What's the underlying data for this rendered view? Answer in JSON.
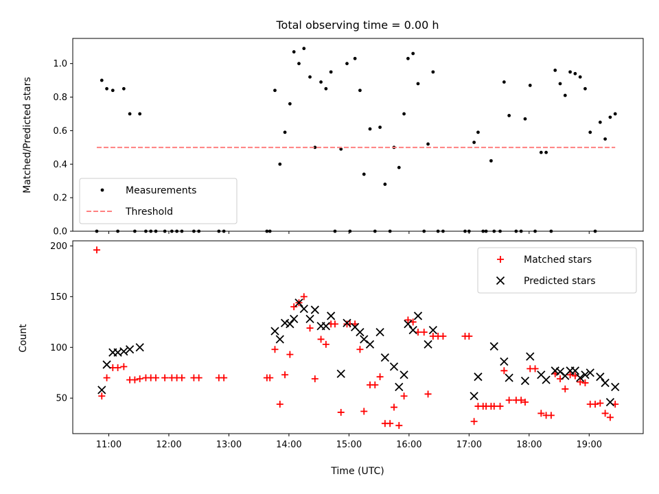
{
  "chart_data": [
    {
      "type": "scatter",
      "title": "Total observing time = 0.00 h",
      "xlabel": "",
      "ylabel": "Matched/Predicted stars",
      "xlim": [
        "10:24",
        "19:54"
      ],
      "ylim": [
        0,
        1.15
      ],
      "yticks": [
        0.0,
        0.2,
        0.4,
        0.6,
        0.8,
        1.0
      ],
      "ytick_labels": [
        "0.0",
        "0.2",
        "0.4",
        "0.6",
        "0.8",
        "1.0"
      ],
      "grid": false,
      "legend_position": "lower-left",
      "series": [
        {
          "name": "Measurements",
          "color": "#000000",
          "marker": "dot",
          "points": [
            [
              "10:48",
              0.0
            ],
            [
              "10:53",
              0.9
            ],
            [
              "10:58",
              0.85
            ],
            [
              "11:04",
              0.84
            ],
            [
              "11:09",
              0.0
            ],
            [
              "11:15",
              0.85
            ],
            [
              "11:21",
              0.7
            ],
            [
              "11:26",
              0.0
            ],
            [
              "11:31",
              0.7
            ],
            [
              "11:37",
              0.0
            ],
            [
              "11:42",
              0.0
            ],
            [
              "11:47",
              0.0
            ],
            [
              "11:56",
              0.0
            ],
            [
              "12:03",
              0.0
            ],
            [
              "12:08",
              0.0
            ],
            [
              "12:13",
              0.0
            ],
            [
              "12:25",
              0.0
            ],
            [
              "12:30",
              0.0
            ],
            [
              "12:50",
              0.0
            ],
            [
              "12:55",
              0.0
            ],
            [
              "13:38",
              0.0
            ],
            [
              "13:41",
              0.0
            ],
            [
              "13:46",
              0.84
            ],
            [
              "13:51",
              0.4
            ],
            [
              "13:56",
              0.59
            ],
            [
              "14:01",
              0.76
            ],
            [
              "14:05",
              1.07
            ],
            [
              "14:10",
              1.0
            ],
            [
              "14:15",
              1.09
            ],
            [
              "14:21",
              0.92
            ],
            [
              "14:26",
              0.5
            ],
            [
              "14:32",
              0.89
            ],
            [
              "14:37",
              0.85
            ],
            [
              "14:42",
              0.95
            ],
            [
              "14:46",
              0.0
            ],
            [
              "14:52",
              0.49
            ],
            [
              "14:58",
              1.0
            ],
            [
              "15:01",
              0.0
            ],
            [
              "15:06",
              1.03
            ],
            [
              "15:11",
              0.84
            ],
            [
              "15:15",
              0.34
            ],
            [
              "15:21",
              0.61
            ],
            [
              "15:26",
              0.0
            ],
            [
              "15:31",
              0.62
            ],
            [
              "15:36",
              0.28
            ],
            [
              "15:41",
              0.0
            ],
            [
              "15:45",
              0.5
            ],
            [
              "15:50",
              0.38
            ],
            [
              "15:55",
              0.7
            ],
            [
              "15:59",
              1.03
            ],
            [
              "16:04",
              1.06
            ],
            [
              "16:09",
              0.88
            ],
            [
              "16:15",
              0.0
            ],
            [
              "16:19",
              0.52
            ],
            [
              "16:24",
              0.95
            ],
            [
              "16:29",
              0.0
            ],
            [
              "16:34",
              0.0
            ],
            [
              "16:56",
              0.0
            ],
            [
              "17:00",
              0.0
            ],
            [
              "17:05",
              0.53
            ],
            [
              "17:09",
              0.59
            ],
            [
              "17:14",
              0.0
            ],
            [
              "17:17",
              0.0
            ],
            [
              "17:22",
              0.42
            ],
            [
              "17:25",
              0.0
            ],
            [
              "17:31",
              0.0
            ],
            [
              "17:35",
              0.89
            ],
            [
              "17:40",
              0.69
            ],
            [
              "17:47",
              0.0
            ],
            [
              "17:52",
              0.0
            ],
            [
              "17:56",
              0.67
            ],
            [
              "18:01",
              0.87
            ],
            [
              "18:06",
              0.0
            ],
            [
              "18:12",
              0.47
            ],
            [
              "18:17",
              0.47
            ],
            [
              "18:22",
              0.0
            ],
            [
              "18:26",
              0.96
            ],
            [
              "18:31",
              0.88
            ],
            [
              "18:36",
              0.81
            ],
            [
              "18:41",
              0.95
            ],
            [
              "18:46",
              0.94
            ],
            [
              "18:51",
              0.92
            ],
            [
              "18:56",
              0.85
            ],
            [
              "19:01",
              0.59
            ],
            [
              "19:06",
              0.0
            ],
            [
              "19:11",
              0.65
            ],
            [
              "19:16",
              0.55
            ],
            [
              "19:21",
              0.68
            ],
            [
              "19:26",
              0.7
            ]
          ]
        },
        {
          "name": "Threshold",
          "color": "#ff8080",
          "style": "dashed",
          "points": [
            [
              "10:48",
              0.5
            ],
            [
              "19:26",
              0.5
            ]
          ]
        }
      ]
    },
    {
      "type": "scatter",
      "title": "",
      "xlabel": "Time (UTC)",
      "ylabel": "Count",
      "xlim": [
        "10:24",
        "19:54"
      ],
      "ylim": [
        15,
        205
      ],
      "yticks": [
        50,
        100,
        150,
        200
      ],
      "ytick_labels": [
        "50",
        "100",
        "150",
        "200"
      ],
      "xticks": [
        "11:00",
        "12:00",
        "13:00",
        "14:00",
        "15:00",
        "16:00",
        "17:00",
        "18:00",
        "19:00"
      ],
      "xtick_labels": [
        "11:00",
        "12:00",
        "13:00",
        "14:00",
        "15:00",
        "16:00",
        "17:00",
        "18:00",
        "19:00"
      ],
      "grid": false,
      "legend_position": "top-right",
      "series": [
        {
          "name": "Matched stars",
          "color": "#ff0000",
          "marker": "plus",
          "points": [
            [
              "10:48",
              196
            ],
            [
              "10:53",
              52
            ],
            [
              "10:58",
              70
            ],
            [
              "11:04",
              80
            ],
            [
              "11:09",
              80
            ],
            [
              "11:15",
              81
            ],
            [
              "11:21",
              68
            ],
            [
              "11:26",
              68
            ],
            [
              "11:31",
              69
            ],
            [
              "11:37",
              70
            ],
            [
              "11:42",
              70
            ],
            [
              "11:47",
              70
            ],
            [
              "11:56",
              70
            ],
            [
              "12:03",
              70
            ],
            [
              "12:08",
              70
            ],
            [
              "12:13",
              70
            ],
            [
              "12:25",
              70
            ],
            [
              "12:30",
              70
            ],
            [
              "12:50",
              70
            ],
            [
              "12:55",
              70
            ],
            [
              "13:38",
              70
            ],
            [
              "13:41",
              70
            ],
            [
              "13:46",
              98
            ],
            [
              "13:51",
              44
            ],
            [
              "13:56",
              73
            ],
            [
              "14:01",
              93
            ],
            [
              "14:05",
              140
            ],
            [
              "14:10",
              144
            ],
            [
              "14:15",
              150
            ],
            [
              "14:21",
              119
            ],
            [
              "14:26",
              69
            ],
            [
              "14:32",
              108
            ],
            [
              "14:37",
              103
            ],
            [
              "14:42",
              123
            ],
            [
              "14:46",
              123
            ],
            [
              "14:52",
              36
            ],
            [
              "14:58",
              123
            ],
            [
              "15:01",
              123
            ],
            [
              "15:06",
              123
            ],
            [
              "15:11",
              98
            ],
            [
              "15:15",
              37
            ],
            [
              "15:21",
              63
            ],
            [
              "15:26",
              63
            ],
            [
              "15:31",
              71
            ],
            [
              "15:36",
              25
            ],
            [
              "15:41",
              25
            ],
            [
              "15:45",
              41
            ],
            [
              "15:50",
              23
            ],
            [
              "15:55",
              52
            ],
            [
              "15:59",
              127
            ],
            [
              "16:04",
              125
            ],
            [
              "16:09",
              115
            ],
            [
              "16:15",
              115
            ],
            [
              "16:19",
              54
            ],
            [
              "16:24",
              111
            ],
            [
              "16:29",
              111
            ],
            [
              "16:34",
              111
            ],
            [
              "16:56",
              111
            ],
            [
              "17:00",
              111
            ],
            [
              "17:05",
              27
            ],
            [
              "17:09",
              42
            ],
            [
              "17:14",
              42
            ],
            [
              "17:17",
              42
            ],
            [
              "17:22",
              42
            ],
            [
              "17:25",
              42
            ],
            [
              "17:31",
              42
            ],
            [
              "17:35",
              77
            ],
            [
              "17:40",
              48
            ],
            [
              "17:47",
              48
            ],
            [
              "17:52",
              48
            ],
            [
              "17:56",
              46
            ],
            [
              "18:01",
              79
            ],
            [
              "18:06",
              79
            ],
            [
              "18:12",
              35
            ],
            [
              "18:17",
              33
            ],
            [
              "18:22",
              33
            ],
            [
              "18:26",
              74
            ],
            [
              "18:31",
              69
            ],
            [
              "18:36",
              59
            ],
            [
              "18:41",
              73
            ],
            [
              "18:46",
              72
            ],
            [
              "18:51",
              66
            ],
            [
              "18:56",
              65
            ],
            [
              "19:01",
              44
            ],
            [
              "19:06",
              44
            ],
            [
              "19:11",
              45
            ],
            [
              "19:16",
              35
            ],
            [
              "19:21",
              31
            ],
            [
              "19:26",
              44
            ]
          ]
        },
        {
          "name": "Predicted stars",
          "color": "#000000",
          "marker": "x",
          "points": [
            [
              "10:53",
              58
            ],
            [
              "10:58",
              83
            ],
            [
              "11:04",
              95
            ],
            [
              "11:09",
              95
            ],
            [
              "11:15",
              96
            ],
            [
              "11:21",
              98
            ],
            [
              "11:31",
              100
            ],
            [
              "13:46",
              116
            ],
            [
              "13:51",
              108
            ],
            [
              "13:56",
              124
            ],
            [
              "14:01",
              123
            ],
            [
              "14:05",
              128
            ],
            [
              "14:10",
              144
            ],
            [
              "14:15",
              138
            ],
            [
              "14:21",
              128
            ],
            [
              "14:26",
              137
            ],
            [
              "14:32",
              121
            ],
            [
              "14:37",
              121
            ],
            [
              "14:42",
              131
            ],
            [
              "14:52",
              74
            ],
            [
              "14:58",
              124
            ],
            [
              "15:06",
              120
            ],
            [
              "15:11",
              115
            ],
            [
              "15:15",
              108
            ],
            [
              "15:21",
              103
            ],
            [
              "15:31",
              115
            ],
            [
              "15:36",
              90
            ],
            [
              "15:45",
              81
            ],
            [
              "15:50",
              61
            ],
            [
              "15:55",
              73
            ],
            [
              "15:59",
              123
            ],
            [
              "16:04",
              117
            ],
            [
              "16:09",
              131
            ],
            [
              "16:19",
              103
            ],
            [
              "16:24",
              117
            ],
            [
              "17:05",
              52
            ],
            [
              "17:09",
              71
            ],
            [
              "17:25",
              101
            ],
            [
              "17:35",
              86
            ],
            [
              "17:40",
              70
            ],
            [
              "17:56",
              67
            ],
            [
              "18:01",
              91
            ],
            [
              "18:12",
              73
            ],
            [
              "18:17",
              68
            ],
            [
              "18:26",
              77
            ],
            [
              "18:31",
              76
            ],
            [
              "18:36",
              72
            ],
            [
              "18:41",
              77
            ],
            [
              "18:46",
              77
            ],
            [
              "18:51",
              70
            ],
            [
              "18:56",
              73
            ],
            [
              "19:01",
              75
            ],
            [
              "19:11",
              71
            ],
            [
              "19:16",
              65
            ],
            [
              "19:21",
              46
            ],
            [
              "19:26",
              61
            ]
          ]
        }
      ]
    }
  ]
}
